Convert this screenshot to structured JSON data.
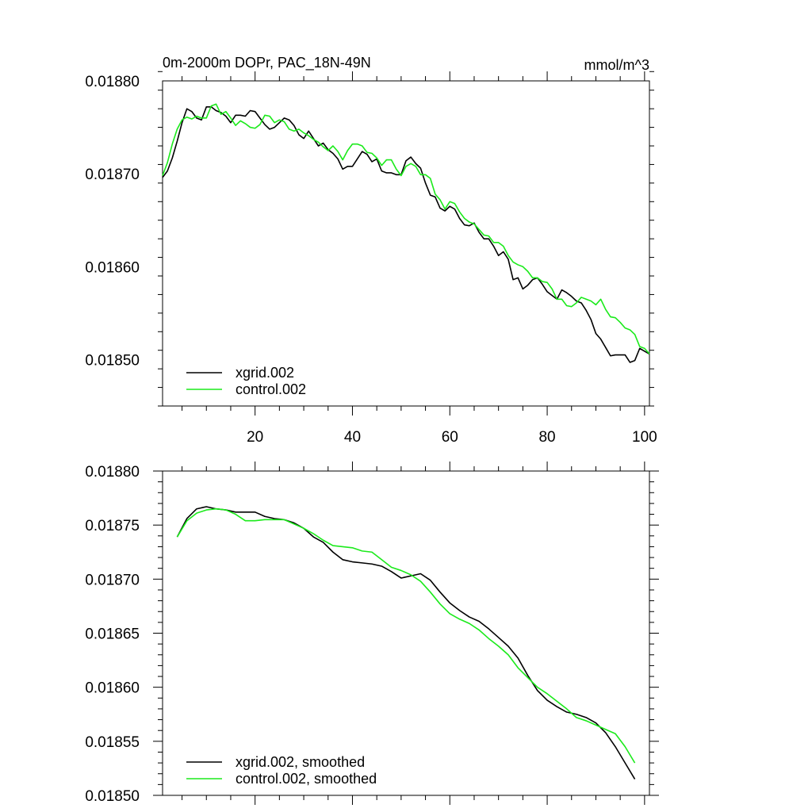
{
  "colors": {
    "series1": "#000000",
    "series2": "#1bea1b",
    "frame": "#000000",
    "background": "#ffffff"
  },
  "chart_data": [
    {
      "type": "line",
      "title": "0m-2000m DOPr, PAC_18N-49N",
      "units": "mmol/m^3",
      "xlabel": "",
      "ylabel": "",
      "xlim": [
        1,
        101
      ],
      "ylim": [
        0.01845,
        0.0188
      ],
      "xticks": [
        20,
        40,
        60,
        80,
        100
      ],
      "xtick_labels": [
        "20",
        "40",
        "60",
        "80",
        "100"
      ],
      "yticks": [
        0.0188,
        0.0187,
        0.0186,
        0.0185
      ],
      "ytick_labels": [
        "0.01880",
        "0.01870",
        "0.01860",
        "0.01850"
      ],
      "show_xtick_labels": true,
      "legend_position": "bottom-left",
      "series": [
        {
          "name": "xgrid.002",
          "x": [
            1,
            2,
            3,
            4,
            5,
            6,
            7,
            8,
            9,
            10,
            11,
            12,
            13,
            14,
            15,
            16,
            17,
            18,
            19,
            20,
            21,
            22,
            23,
            24,
            25,
            26,
            27,
            28,
            29,
            30,
            31,
            32,
            33,
            34,
            35,
            36,
            37,
            38,
            39,
            40,
            41,
            42,
            43,
            44,
            45,
            46,
            47,
            48,
            49,
            50,
            51,
            52,
            53,
            54,
            55,
            56,
            57,
            58,
            59,
            60,
            61,
            62,
            63,
            64,
            65,
            66,
            67,
            68,
            69,
            70,
            71,
            72,
            73,
            74,
            75,
            76,
            77,
            78,
            79,
            80,
            81,
            82,
            83,
            84,
            85,
            86,
            87,
            88,
            89,
            90,
            91,
            92,
            93,
            94,
            95,
            96,
            97,
            98,
            99,
            100,
            101
          ],
          "values": [
            0.018696,
            0.018703,
            0.018717,
            0.018735,
            0.018755,
            0.01877,
            0.018767,
            0.01876,
            0.018758,
            0.018772,
            0.018772,
            0.018768,
            0.018766,
            0.018762,
            0.018755,
            0.018763,
            0.018763,
            0.018762,
            0.018768,
            0.018767,
            0.01876,
            0.018753,
            0.018748,
            0.01875,
            0.018755,
            0.01876,
            0.018758,
            0.018752,
            0.018742,
            0.018738,
            0.018746,
            0.018738,
            0.01873,
            0.018733,
            0.018726,
            0.018722,
            0.018716,
            0.018705,
            0.018708,
            0.018708,
            0.018716,
            0.018724,
            0.018721,
            0.018713,
            0.018716,
            0.018703,
            0.018701,
            0.018701,
            0.018699,
            0.018699,
            0.018714,
            0.018718,
            0.018711,
            0.018706,
            0.01869,
            0.018677,
            0.018675,
            0.018663,
            0.01866,
            0.018665,
            0.018662,
            0.018652,
            0.018645,
            0.018644,
            0.018647,
            0.018637,
            0.01863,
            0.01863,
            0.018622,
            0.018612,
            0.018616,
            0.018608,
            0.018586,
            0.018588,
            0.018576,
            0.01858,
            0.018586,
            0.018588,
            0.018581,
            0.018573,
            0.018569,
            0.018565,
            0.018575,
            0.018572,
            0.018568,
            0.018563,
            0.018561,
            0.018553,
            0.018543,
            0.018528,
            0.018522,
            0.018513,
            0.018504,
            0.018505,
            0.018505,
            0.018505,
            0.018497,
            0.018499,
            0.018512,
            0.018509,
            0.018506
          ]
        },
        {
          "name": "control.002",
          "x": [
            1,
            2,
            3,
            4,
            5,
            6,
            7,
            8,
            9,
            10,
            11,
            12,
            13,
            14,
            15,
            16,
            17,
            18,
            19,
            20,
            21,
            22,
            23,
            24,
            25,
            26,
            27,
            28,
            29,
            30,
            31,
            32,
            33,
            34,
            35,
            36,
            37,
            38,
            39,
            40,
            41,
            42,
            43,
            44,
            45,
            46,
            47,
            48,
            49,
            50,
            51,
            52,
            53,
            54,
            55,
            56,
            57,
            58,
            59,
            60,
            61,
            62,
            63,
            64,
            65,
            66,
            67,
            68,
            69,
            70,
            71,
            72,
            73,
            74,
            75,
            76,
            77,
            78,
            79,
            80,
            81,
            82,
            83,
            84,
            85,
            86,
            87,
            88,
            89,
            90,
            91,
            92,
            93,
            94,
            95,
            96,
            97,
            98,
            99,
            100,
            101
          ],
          "values": [
            0.018698,
            0.018712,
            0.018732,
            0.018748,
            0.018758,
            0.018761,
            0.018759,
            0.018762,
            0.01876,
            0.01876,
            0.018773,
            0.018775,
            0.018764,
            0.018767,
            0.01876,
            0.018752,
            0.018757,
            0.018754,
            0.01875,
            0.018749,
            0.018753,
            0.018763,
            0.018762,
            0.018755,
            0.018758,
            0.018756,
            0.018748,
            0.018746,
            0.018748,
            0.018744,
            0.018741,
            0.018737,
            0.018734,
            0.018729,
            0.018725,
            0.01873,
            0.018724,
            0.018715,
            0.018725,
            0.018732,
            0.018732,
            0.01873,
            0.018723,
            0.018722,
            0.018717,
            0.018709,
            0.018715,
            0.018715,
            0.018705,
            0.018698,
            0.018708,
            0.018711,
            0.018708,
            0.018699,
            0.018699,
            0.018695,
            0.018678,
            0.018672,
            0.018662,
            0.01867,
            0.018668,
            0.018659,
            0.018652,
            0.018648,
            0.018646,
            0.01864,
            0.018634,
            0.018633,
            0.018626,
            0.018626,
            0.018622,
            0.018612,
            0.018605,
            0.018602,
            0.0186,
            0.018595,
            0.018588,
            0.018588,
            0.018584,
            0.018583,
            0.018576,
            0.018565,
            0.018565,
            0.018558,
            0.018557,
            0.018561,
            0.018567,
            0.018565,
            0.018563,
            0.018559,
            0.018565,
            0.018554,
            0.018546,
            0.018545,
            0.01854,
            0.018534,
            0.018532,
            0.018527,
            0.018514,
            0.018512,
            0.018506
          ]
        }
      ]
    },
    {
      "type": "line",
      "title": "",
      "units": "",
      "xlabel": "",
      "ylabel": "",
      "xlim": [
        1,
        101
      ],
      "ylim": [
        0.0185,
        0.0188
      ],
      "xticks": [
        20,
        40,
        60,
        80,
        100
      ],
      "xtick_labels": [],
      "yticks": [
        0.0188,
        0.01875,
        0.0187,
        0.01865,
        0.0186,
        0.01855,
        0.0185
      ],
      "ytick_labels": [
        "0.01880",
        "0.01875",
        "0.01870",
        "0.01865",
        "0.01860",
        "0.01855",
        "0.01850"
      ],
      "show_xtick_labels": false,
      "legend_position": "bottom-left",
      "series": [
        {
          "name": "xgrid.002, smoothed",
          "x": [
            4,
            6,
            8,
            10,
            12,
            14,
            16,
            18,
            20,
            22,
            24,
            26,
            28,
            30,
            32,
            34,
            36,
            38,
            40,
            42,
            44,
            46,
            48,
            50,
            52,
            54,
            56,
            58,
            60,
            62,
            64,
            66,
            68,
            70,
            72,
            74,
            76,
            78,
            80,
            82,
            84,
            86,
            88,
            90,
            92,
            94,
            96,
            98
          ],
          "values": [
            0.018739,
            0.018756,
            0.018765,
            0.018767,
            0.018765,
            0.018764,
            0.018762,
            0.018762,
            0.018762,
            0.018758,
            0.018756,
            0.018755,
            0.018752,
            0.018747,
            0.018739,
            0.018734,
            0.018725,
            0.018718,
            0.018716,
            0.018715,
            0.018714,
            0.018712,
            0.018707,
            0.018701,
            0.018703,
            0.018705,
            0.018699,
            0.018688,
            0.018678,
            0.018671,
            0.018665,
            0.018661,
            0.018654,
            0.018646,
            0.018638,
            0.018627,
            0.018611,
            0.018597,
            0.018588,
            0.018582,
            0.018577,
            0.018575,
            0.018572,
            0.018567,
            0.018558,
            0.018545,
            0.01853,
            0.018515
          ]
        },
        {
          "name": "control.002, smoothed",
          "x": [
            4,
            6,
            8,
            10,
            12,
            14,
            16,
            18,
            20,
            22,
            24,
            26,
            28,
            30,
            32,
            34,
            36,
            38,
            40,
            42,
            44,
            46,
            48,
            50,
            52,
            54,
            56,
            58,
            60,
            62,
            64,
            66,
            68,
            70,
            72,
            74,
            76,
            78,
            80,
            82,
            84,
            86,
            88,
            90,
            92,
            94,
            96,
            98
          ],
          "values": [
            0.018739,
            0.018754,
            0.018761,
            0.018764,
            0.018765,
            0.018764,
            0.01876,
            0.018754,
            0.018754,
            0.018755,
            0.018755,
            0.018755,
            0.018751,
            0.018747,
            0.018742,
            0.018736,
            0.018731,
            0.01873,
            0.018729,
            0.018726,
            0.018725,
            0.018718,
            0.018711,
            0.018708,
            0.018704,
            0.018698,
            0.018688,
            0.018677,
            0.018668,
            0.018663,
            0.018659,
            0.018653,
            0.018645,
            0.018638,
            0.01863,
            0.018618,
            0.018609,
            0.0186,
            0.018594,
            0.018587,
            0.01858,
            0.018572,
            0.018569,
            0.018565,
            0.018561,
            0.018557,
            0.018545,
            0.01853
          ]
        }
      ]
    }
  ]
}
